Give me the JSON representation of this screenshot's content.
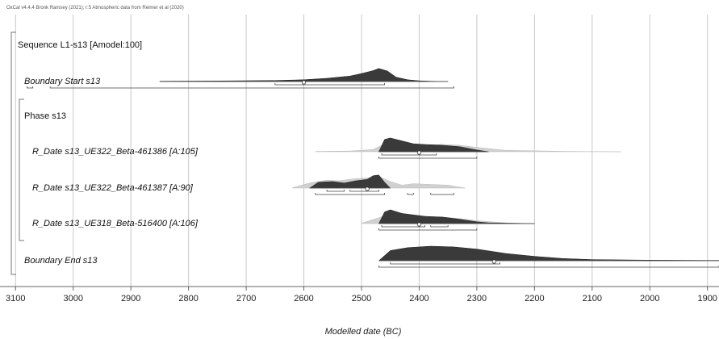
{
  "header_text": "OxCal v4.4.4 Bronk Ramsey (2021); r:5 Atmospheric data from Reimer et al (2020)",
  "chart_data": {
    "type": "density",
    "xlabel": "Modelled date (BC)",
    "xlim": [
      3120,
      1880
    ],
    "xticks": [
      3100,
      3000,
      2900,
      2800,
      2700,
      2600,
      2500,
      2400,
      2300,
      2200,
      2100,
      2000,
      1900
    ],
    "grid": true,
    "rows": [
      {
        "label": "Sequence L1-s13 [Amodel:100]",
        "kind": "group",
        "italic": false,
        "indent": 0
      },
      {
        "label": "Boundary Start s13",
        "kind": "boundary",
        "italic": true,
        "indent": 1,
        "posterior": {
          "x": [
            2850,
            2750,
            2650,
            2600,
            2560,
            2520,
            2500,
            2480,
            2470,
            2455,
            2440,
            2420,
            2400,
            2380,
            2350
          ],
          "y": [
            0.02,
            0.04,
            0.07,
            0.12,
            0.22,
            0.38,
            0.55,
            0.75,
            0.9,
            0.72,
            0.3,
            0.12,
            0.05,
            0.02,
            0.0
          ]
        },
        "hpd68": [
          [
            2650,
            2460
          ]
        ],
        "hpd95": [
          [
            3080,
            3070
          ],
          [
            3040,
            2340
          ]
        ],
        "median": 2600
      },
      {
        "label": "Phase s13",
        "kind": "group",
        "italic": false,
        "indent": 1
      },
      {
        "label": "R_Date s13_UE322_Beta-461386 [A:105]",
        "kind": "date",
        "italic": true,
        "indent": 2,
        "prior": {
          "x": [
            2580,
            2520,
            2480,
            2460,
            2430,
            2400,
            2360,
            2330,
            2300,
            2250,
            2150,
            2050
          ],
          "y": [
            0.02,
            0.05,
            0.15,
            0.55,
            0.6,
            0.45,
            0.5,
            0.45,
            0.3,
            0.1,
            0.03,
            0.0
          ]
        },
        "posterior": {
          "x": [
            2470,
            2460,
            2450,
            2430,
            2410,
            2390,
            2360,
            2330,
            2300,
            2280
          ],
          "y": [
            0.0,
            0.85,
            0.95,
            0.75,
            0.55,
            0.5,
            0.45,
            0.35,
            0.12,
            0.0
          ]
        },
        "hpd68": [
          [
            2465,
            2370
          ]
        ],
        "hpd95": [
          [
            2470,
            2300
          ]
        ],
        "median": 2400
      },
      {
        "label": "R_Date s13_UE322_Beta-461387 [A:90]",
        "kind": "date",
        "italic": true,
        "indent": 2,
        "prior": {
          "x": [
            2620,
            2590,
            2560,
            2540,
            2510,
            2490,
            2470,
            2450,
            2430,
            2410,
            2380,
            2350,
            2320
          ],
          "y": [
            0.02,
            0.35,
            0.55,
            0.5,
            0.65,
            0.7,
            0.8,
            0.45,
            0.2,
            0.3,
            0.25,
            0.2,
            0.0
          ]
        },
        "posterior": {
          "x": [
            2590,
            2575,
            2550,
            2530,
            2510,
            2490,
            2480,
            2470,
            2460,
            2450
          ],
          "y": [
            0.0,
            0.4,
            0.45,
            0.35,
            0.5,
            0.6,
            0.85,
            0.9,
            0.4,
            0.0
          ]
        },
        "hpd68": [
          [
            2560,
            2530
          ],
          [
            2520,
            2470
          ]
        ],
        "hpd95": [
          [
            2580,
            2460
          ],
          [
            2420,
            2410
          ],
          [
            2380,
            2340
          ]
        ],
        "median": 2490
      },
      {
        "label": "R_Date s13_UE318_Beta-516400 [A:106]",
        "kind": "date",
        "italic": true,
        "indent": 2,
        "prior": {
          "x": [
            2500,
            2470,
            2450,
            2420,
            2390,
            2360,
            2330,
            2300,
            2250,
            2200
          ],
          "y": [
            0.02,
            0.4,
            0.7,
            0.55,
            0.45,
            0.45,
            0.35,
            0.2,
            0.05,
            0.0
          ]
        },
        "posterior": {
          "x": [
            2470,
            2460,
            2450,
            2430,
            2410,
            2390,
            2360,
            2330,
            2300,
            2280,
            2200
          ],
          "y": [
            0.0,
            0.8,
            0.95,
            0.7,
            0.6,
            0.5,
            0.45,
            0.3,
            0.12,
            0.05,
            0.0
          ]
        },
        "hpd68": [
          [
            2465,
            2390
          ],
          [
            2380,
            2350
          ]
        ],
        "hpd95": [
          [
            2470,
            2300
          ]
        ],
        "median": 2400
      },
      {
        "label": "Boundary End s13",
        "kind": "boundary",
        "italic": true,
        "indent": 1,
        "posterior": {
          "x": [
            2470,
            2450,
            2420,
            2380,
            2340,
            2300,
            2250,
            2200,
            2150,
            2100,
            2000,
            1900,
            1880
          ],
          "y": [
            0.0,
            0.7,
            0.9,
            1.0,
            0.95,
            0.8,
            0.5,
            0.3,
            0.15,
            0.08,
            0.04,
            0.02,
            0.02
          ]
        },
        "hpd68": [
          [
            2450,
            2260
          ]
        ],
        "hpd95": [
          [
            2470,
            1880
          ]
        ],
        "median": 2270
      }
    ]
  }
}
